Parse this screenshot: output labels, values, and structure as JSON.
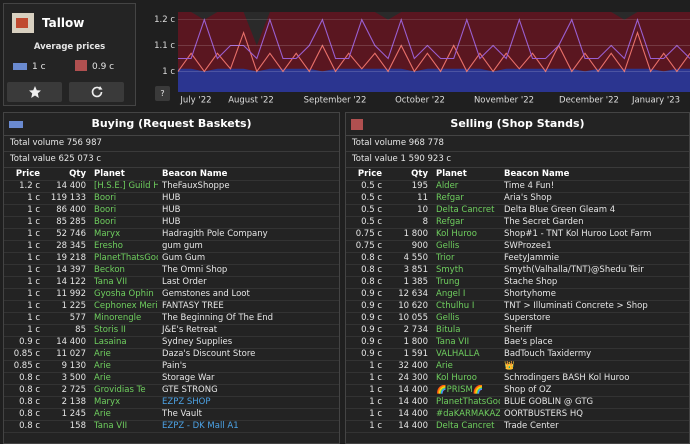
{
  "item": {
    "name": "Tallow",
    "average_label": "Average prices",
    "buy_avg": "1 c",
    "sell_avg": "0.9 c"
  },
  "price_chart": {
    "type": "line",
    "ylim": [
      0.92,
      1.23
    ],
    "yticks": [
      {
        "value": 1,
        "label": "1 c"
      },
      {
        "value": 1.1,
        "label": "1.1 c"
      },
      {
        "value": 1.2,
        "label": "1.2 c"
      }
    ],
    "x_labels": [
      "July '22",
      "August '22",
      "September '22",
      "October '22",
      "November '22",
      "December '22",
      "January '23"
    ],
    "help": "?",
    "series": [
      {
        "color": "#5a1620",
        "values": [
          1.23,
          1.23,
          1.2,
          1.23,
          1.23,
          1.23,
          1.1,
          1.23,
          1.23,
          1.23,
          1.23,
          1.23,
          1.23,
          1.23,
          1.23,
          1.23,
          1.2,
          1.23,
          1.23,
          1.23,
          1.23,
          1.23,
          1.23,
          1.23,
          1.23,
          1.23,
          1.23,
          1.23,
          1.23,
          1.23,
          1.23,
          1.23,
          1.23,
          1.23,
          1.2,
          1.23,
          1.23,
          1.23,
          1.23,
          1.23
        ]
      },
      {
        "color": "#2b3590",
        "values": [
          1.01,
          1.01,
          1.0,
          1.01,
          1.01,
          1.01,
          1.0,
          1.01,
          1.01,
          1.01,
          1.01,
          1.0,
          1.01,
          1.01,
          1.01,
          1.01,
          1.01,
          1.01,
          1.0,
          1.01,
          1.01,
          1.01,
          1.01,
          1.01,
          1.0,
          1.01,
          1.01,
          1.01,
          1.01,
          1.01,
          1.01,
          1.0,
          1.01,
          1.01,
          1.01,
          1.01,
          1.01,
          1.0,
          1.01,
          1.01
        ]
      },
      {
        "color": "#e8706a",
        "values": [
          1.0,
          1.07,
          1.0,
          1.07,
          1.01,
          1.15,
          1.0,
          1.07,
          1.0,
          1.07,
          1.0,
          1.1,
          1.0,
          1.07,
          1.01,
          1.07,
          1.0,
          1.1,
          1.0,
          1.07,
          1.0,
          1.1,
          1.0,
          1.07,
          1.0,
          1.07,
          1.01,
          1.07,
          1.0,
          1.1,
          1.0,
          1.07,
          1.0,
          1.07,
          1.0,
          1.15,
          1.0,
          1.07,
          1.0,
          1.07
        ]
      },
      {
        "color": "#9a5fd0",
        "values": [
          1.05,
          1.05,
          1.2,
          1.05,
          1.1,
          1.1,
          1.05,
          1.2,
          1.05,
          1.05,
          1.1,
          1.2,
          1.05,
          1.05,
          1.2,
          1.1,
          1.05,
          1.2,
          1.05,
          1.1,
          1.05,
          1.05,
          1.2,
          1.05,
          1.1,
          1.05,
          1.2,
          1.05,
          1.05,
          1.1,
          1.2,
          1.05,
          1.05,
          1.1,
          1.05,
          1.2,
          1.05,
          1.05,
          1.1,
          1.05
        ]
      }
    ]
  },
  "buying": {
    "title": "Buying (Request Baskets)",
    "total_volume": "Total volume 756 987",
    "total_value": "Total value 625 073 c",
    "columns": [
      "Price",
      "Qty",
      "Planet",
      "Beacon Name"
    ],
    "rows": [
      [
        "1.2 c",
        "14 400",
        "[H.S.E.] Guild HQ",
        "TheFauxShoppe"
      ],
      [
        "1 c",
        "119 133",
        "Boori",
        "HUB"
      ],
      [
        "1 c",
        "86 400",
        "Boori",
        "HUB"
      ],
      [
        "1 c",
        "85 285",
        "Boori",
        "HUB"
      ],
      [
        "1 c",
        "52 746",
        "Maryx",
        "Hadragith Pole Company"
      ],
      [
        "1 c",
        "28 345",
        "Eresho",
        "gum gum"
      ],
      [
        "1 c",
        "19 218",
        "PlanetThatsGood",
        "Gum Gum"
      ],
      [
        "1 c",
        "14 397",
        "Beckon",
        "The Omni Shop"
      ],
      [
        "1 c",
        "14 122",
        "Tana VII",
        "Last Order"
      ],
      [
        "1 c",
        "11 992",
        "Gyosha Ophin",
        "Gemstones and Loot"
      ],
      [
        "1 c",
        "1 225",
        "Cephonex Merika",
        "FANTASY TREE"
      ],
      [
        "1 c",
        "577",
        "Minorengle",
        "The Beginning Of The End"
      ],
      [
        "1 c",
        "85",
        "Storis II",
        "J&E's Retreat"
      ],
      [
        "0.9 c",
        "14 400",
        "Lasaina",
        "Sydney Supplies"
      ],
      [
        "0.85 c",
        "11 027",
        "Arie",
        "Daza's Discount Store"
      ],
      [
        "0.85 c",
        "9 130",
        "Arie",
        "Pain's"
      ],
      [
        "0.8 c",
        "3 500",
        "Arie",
        "Storage War"
      ],
      [
        "0.8 c",
        "2 725",
        "Grovidias Te",
        "GTE STRONG"
      ],
      [
        "0.8 c",
        "2 138",
        "Maryx",
        "EZPZ SHOP"
      ],
      [
        "0.8 c",
        "1 245",
        "Arie",
        "The Vault"
      ],
      [
        "0.8 c",
        "158",
        "Tana VII",
        "EZPZ - DK Mall A1"
      ]
    ]
  },
  "selling": {
    "title": "Selling (Shop Stands)",
    "total_volume": "Total volume 968 778",
    "total_value": "Total value 1 590 923 c",
    "columns": [
      "Price",
      "Qty",
      "Planet",
      "Beacon Name"
    ],
    "rows": [
      [
        "0.5 c",
        "195",
        "Alder",
        "Time 4 Fun!"
      ],
      [
        "0.5 c",
        "11",
        "Refgar",
        "Aria's Shop"
      ],
      [
        "0.5 c",
        "10",
        "Delta Cancret",
        "Delta Blue Green Gleam 4"
      ],
      [
        "0.5 c",
        "8",
        "Refgar",
        "The Secret Garden"
      ],
      [
        "0.75 c",
        "1 800",
        "Kol Huroo",
        "Shop#1 - TNT Kol Huroo Loot Farm"
      ],
      [
        "0.75 c",
        "900",
        "Gellis",
        "SWProzee1"
      ],
      [
        "0.8 c",
        "4 550",
        "Trior",
        "FeetyJammie"
      ],
      [
        "0.8 c",
        "3 851",
        "Smyth",
        "Smyth(Valhalla/TNT)@Shedu Teir"
      ],
      [
        "0.8 c",
        "1 385",
        "Trung",
        "Stache Shop"
      ],
      [
        "0.9 c",
        "12 634",
        "Angel I",
        "Shortyhome"
      ],
      [
        "0.9 c",
        "10 620",
        "Cthulhu I",
        "TNT > Illuminati Concrete > Shop"
      ],
      [
        "0.9 c",
        "10 055",
        "Gellis",
        "Superstore"
      ],
      [
        "0.9 c",
        "2 734",
        "Bitula",
        "Sheriff"
      ],
      [
        "0.9 c",
        "1 800",
        "Tana VII",
        "Bae's place"
      ],
      [
        "0.9 c",
        "1 591",
        "VALHALLA",
        "BadTouch Taxidermy"
      ],
      [
        "1 c",
        "32 400",
        "Arie",
        "👑"
      ],
      [
        "1 c",
        "24 300",
        "Kol Huroo",
        "Schrodingers BASH Kol Huroo"
      ],
      [
        "1 c",
        "14 400",
        "🌈PRISM🌈",
        "Shop of OZ"
      ],
      [
        "1 c",
        "14 400",
        "PlanetThatsGood",
        "BLUE GOBLIN @ GTG"
      ],
      [
        "1 c",
        "14 400",
        "#daKARMAKAZI",
        "OORTBUSTERS HQ"
      ],
      [
        "1 c",
        "14 400",
        "Delta Cancret",
        "Trade Center"
      ]
    ]
  }
}
